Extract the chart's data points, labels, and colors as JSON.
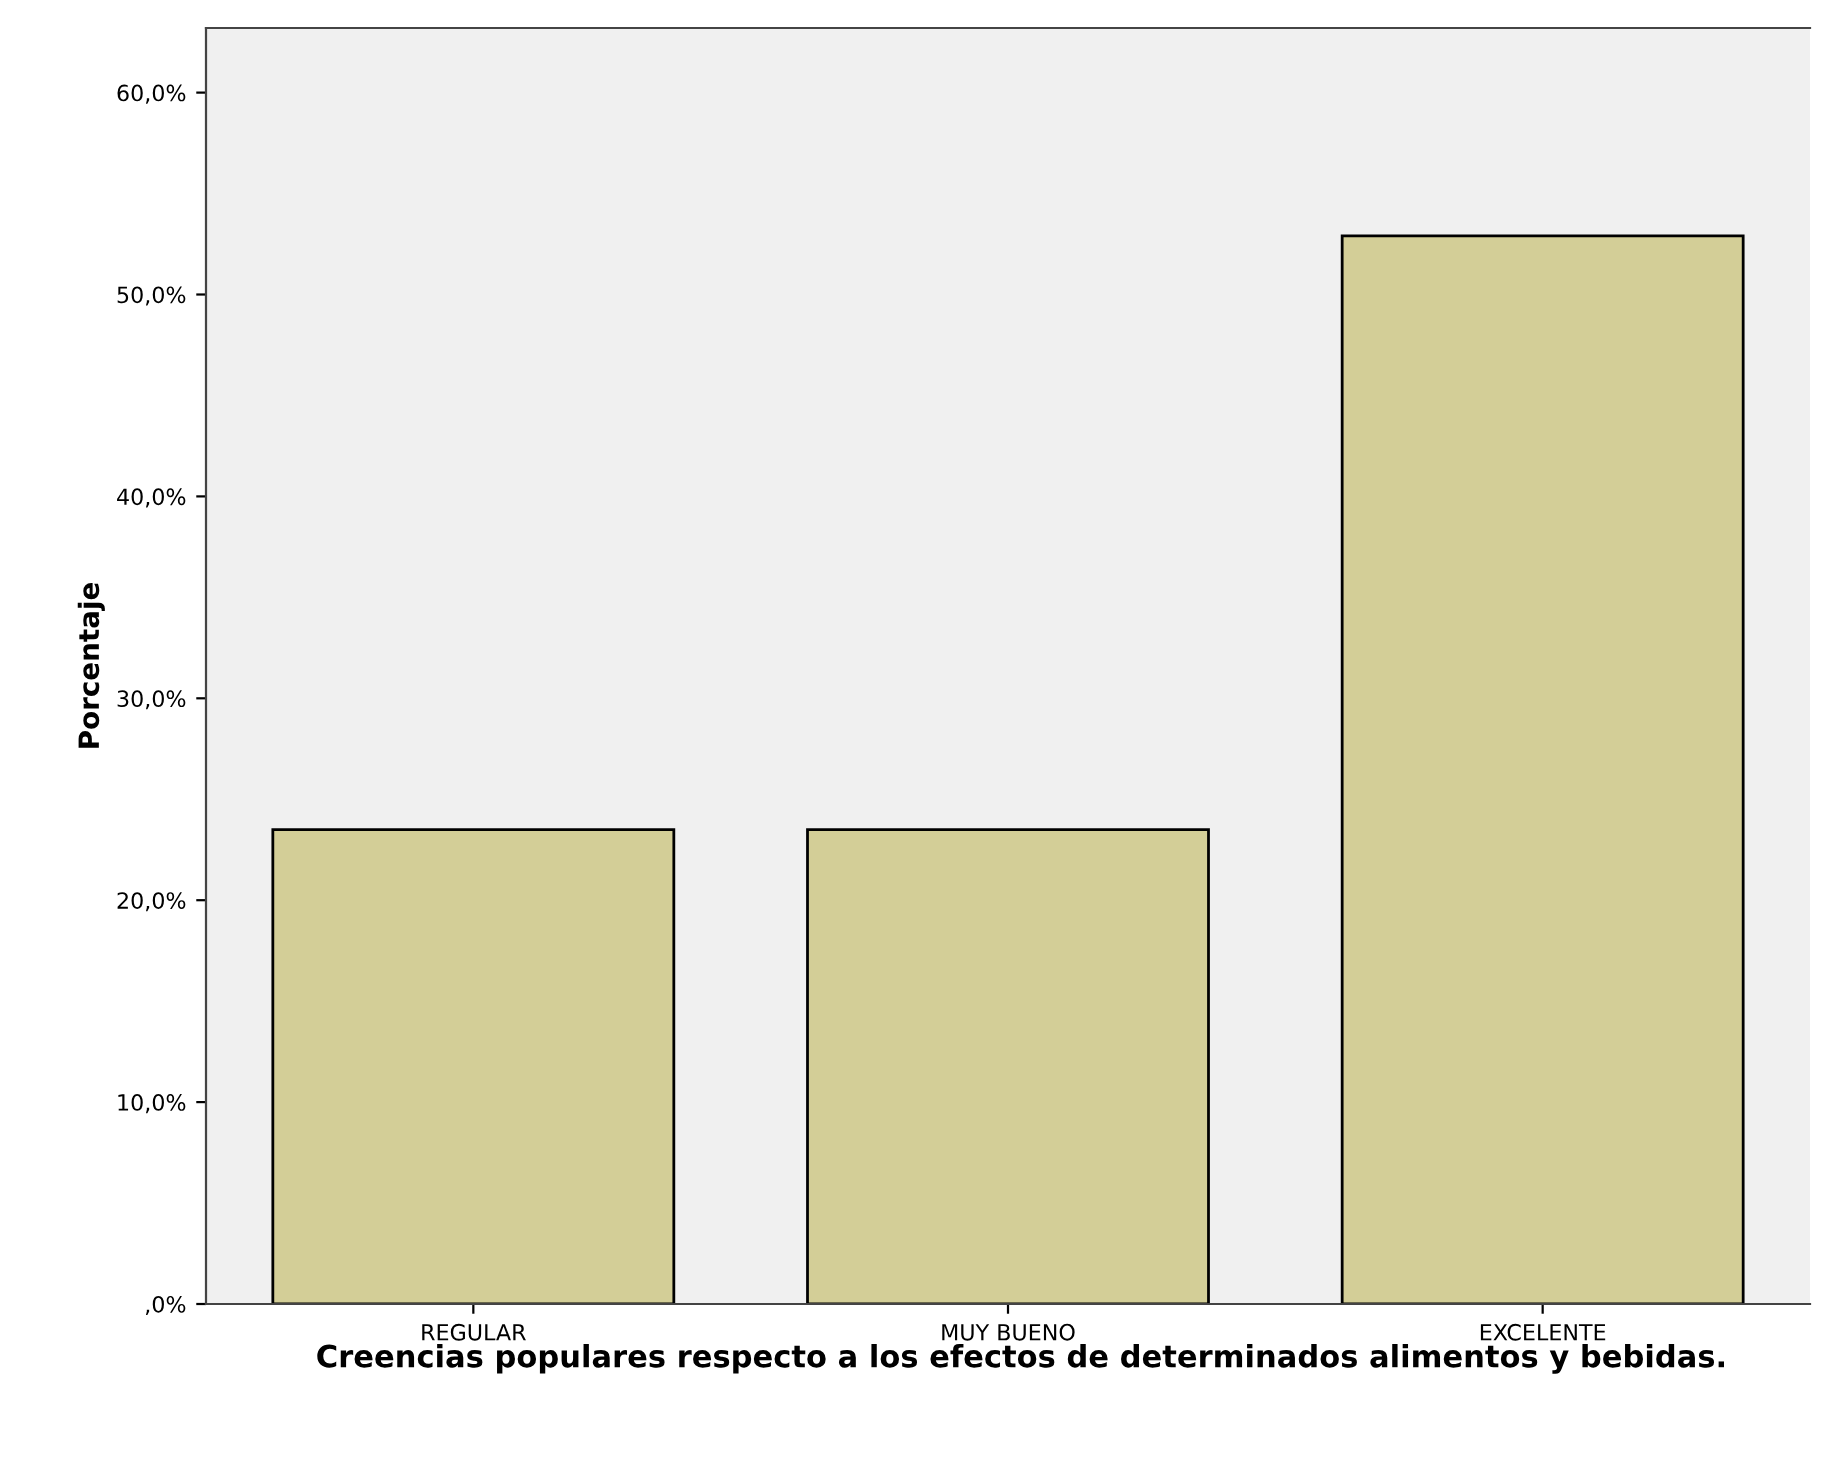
{
  "chart_data": {
    "type": "bar",
    "xlabel": "Creencias populares respecto a los efectos de determinados alimentos y bebidas.",
    "ylabel": "Porcentaje",
    "categories": [
      "REGULAR",
      "MUY BUENO",
      "EXCELENTE"
    ],
    "values": [
      23.5,
      23.5,
      52.9
    ],
    "color": "#d3ce97",
    "ylim": [
      0,
      63.2
    ],
    "yticks": [
      {
        "value": 0,
        "label": ",0%"
      },
      {
        "value": 10,
        "label": "10,0%"
      },
      {
        "value": 20,
        "label": "20,0%"
      },
      {
        "value": 30,
        "label": "30,0%"
      },
      {
        "value": 40,
        "label": "40,0%"
      },
      {
        "value": 50,
        "label": "50,0%"
      },
      {
        "value": 60,
        "label": "60,0%"
      }
    ],
    "grid": false
  }
}
